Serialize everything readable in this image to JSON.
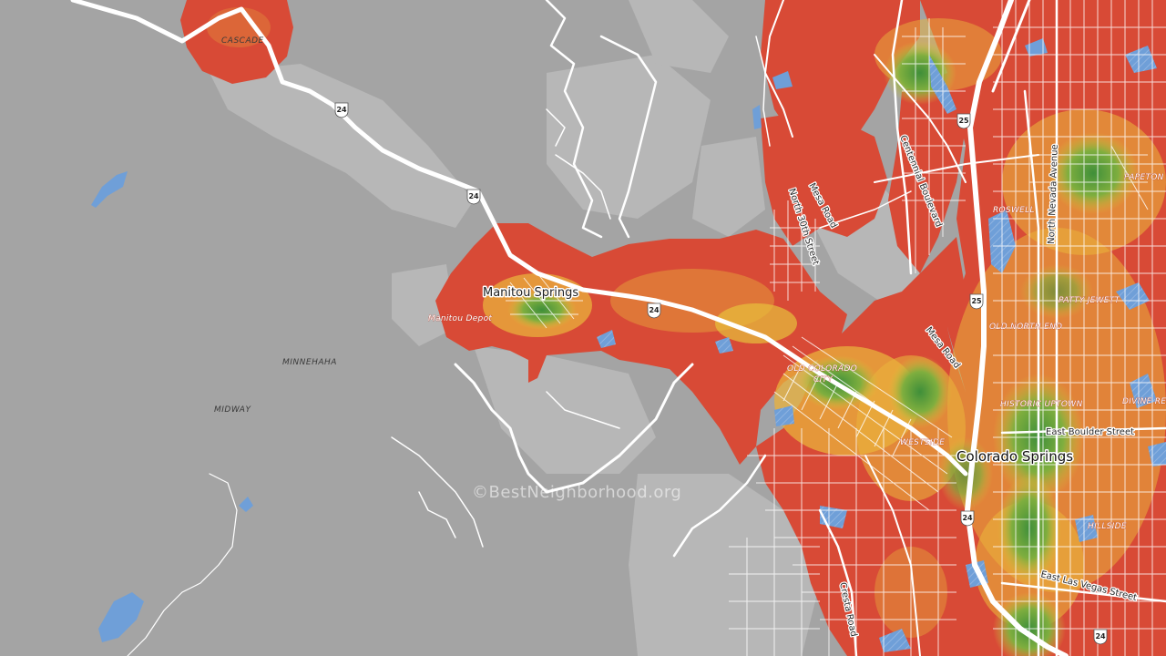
{
  "map": {
    "watermark": "©BestNeighborhood.org",
    "places": {
      "cascade": "CASCADE",
      "manitou_springs": "Manitou Springs",
      "manitou_depot": "Manitou Depot",
      "minnehaha": "MINNEHAHA",
      "midway": "MIDWAY",
      "colorado_springs": "Colorado Springs",
      "roswell": "ROSWELL",
      "papeton": "PAPETON",
      "patty_jewett": "PATTY JEWETT",
      "old_north_end": "OLD NORTH END",
      "old_colorado_city_1": "OLD COLORADO",
      "old_colorado_city_2": "CITY",
      "historic_uptown": "HISTORIC UPTOWN",
      "divine_re": "DIVINE RE",
      "westside": "WESTSIDE",
      "hillside": "HILLSIDE"
    },
    "roads": {
      "north_30th": "North 30th Street",
      "mesa_road_1": "Mesa Road",
      "mesa_road_2": "Mesa Road",
      "centennial": "Centennial Boulevard",
      "north_nevada": "North Nevada Avenue",
      "east_boulder": "East Boulder Street",
      "east_las_vegas": "East Las Vegas Street",
      "cresta": "Cresta Road"
    },
    "shields": [
      "24",
      "24",
      "24",
      "25",
      "25",
      "24",
      "24"
    ]
  }
}
